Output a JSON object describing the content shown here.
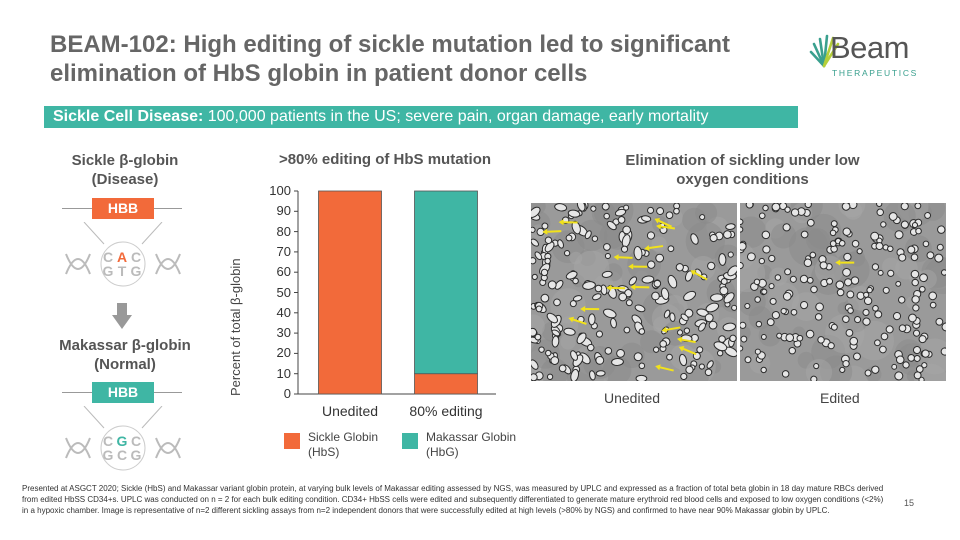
{
  "slide": {
    "title": "BEAM-102: High editing of sickle mutation led to significant elimination of HbS globin in patient donor cells",
    "page_number": "15"
  },
  "logo": {
    "word": "Beam",
    "sub": "THERAPEUTICS",
    "accent": "#3aa08e"
  },
  "banner": {
    "bold": "Sickle Cell Disease:",
    "text": " 100,000 patients in the US; severe pain, organ damage, early mortality",
    "color": "#3fb6a4"
  },
  "left_panel": {
    "disease_heading": "Sickle β-globin\n(Disease)",
    "normal_heading": "Makassar β-globin\n(Normal)",
    "gene_label": "HBB",
    "disease_gene_color": "#f26a3a",
    "normal_gene_color": "#3fb6a4",
    "disease_bases": {
      "top": [
        "C",
        "A",
        "C"
      ],
      "bottom": [
        "G",
        "T",
        "G"
      ],
      "highlight": "A"
    },
    "normal_bases": {
      "top": [
        "C",
        "G",
        "C"
      ],
      "bottom": [
        "G",
        "C",
        "G"
      ],
      "highlight": "G"
    },
    "arrow_icon": "down-arrow-icon"
  },
  "middle_panel": {
    "heading": ">80% editing of HbS mutation"
  },
  "chart_data": {
    "type": "bar",
    "stacked": true,
    "categories": [
      "Unedited",
      "80% editing"
    ],
    "series": [
      {
        "name": "Sickle Globin (HbS)",
        "values": [
          100,
          10
        ],
        "color": "#f26a3a"
      },
      {
        "name": "Makassar Globin (HbG)",
        "values": [
          0,
          90
        ],
        "color": "#3fb6a4"
      }
    ],
    "ylabel": "Percent of total β-globin",
    "ylim": [
      0,
      100
    ],
    "yticks": [
      0,
      10,
      20,
      30,
      40,
      50,
      60,
      70,
      80,
      90,
      100
    ],
    "legend_placement": "bottom",
    "grid": false
  },
  "legend": [
    {
      "line1": "Sickle Globin",
      "line2": "(HbS)",
      "color": "#f26a3a"
    },
    {
      "line1": "Makassar Globin",
      "line2": "(HbG)",
      "color": "#3fb6a4"
    }
  ],
  "right_panel": {
    "heading": "Elimination of sickling under low\noxygen conditions",
    "images": [
      {
        "label": "Unedited",
        "content": "microscopy-image-sickled-cells"
      },
      {
        "label": "Edited",
        "content": "microscopy-image-normal-cells"
      }
    ],
    "marker_color": "#f2e21a"
  },
  "footnote": "Presented at ASGCT 2020;  Sickle (HbS) and Makassar variant globin protein, at varying bulk levels of Makassar editing assessed by NGS, was measured by UPLC and expressed as a fraction of total beta globin in 18 day mature RBCs derived from edited HbSS CD34+s.  UPLC was conducted on n = 2 for each bulk editing condition. CD34+ HbSS cells were edited and subsequently differentiated to generate mature erythroid red blood cells and exposed to low oxygen conditions (<2%) in a hypoxic chamber.  Image is representative of n=2 different sickling assays from n=2 independent donors that were successfully edited at high levels (>80% by NGS) and confirmed to have near 90% Makassar globin by UPLC."
}
